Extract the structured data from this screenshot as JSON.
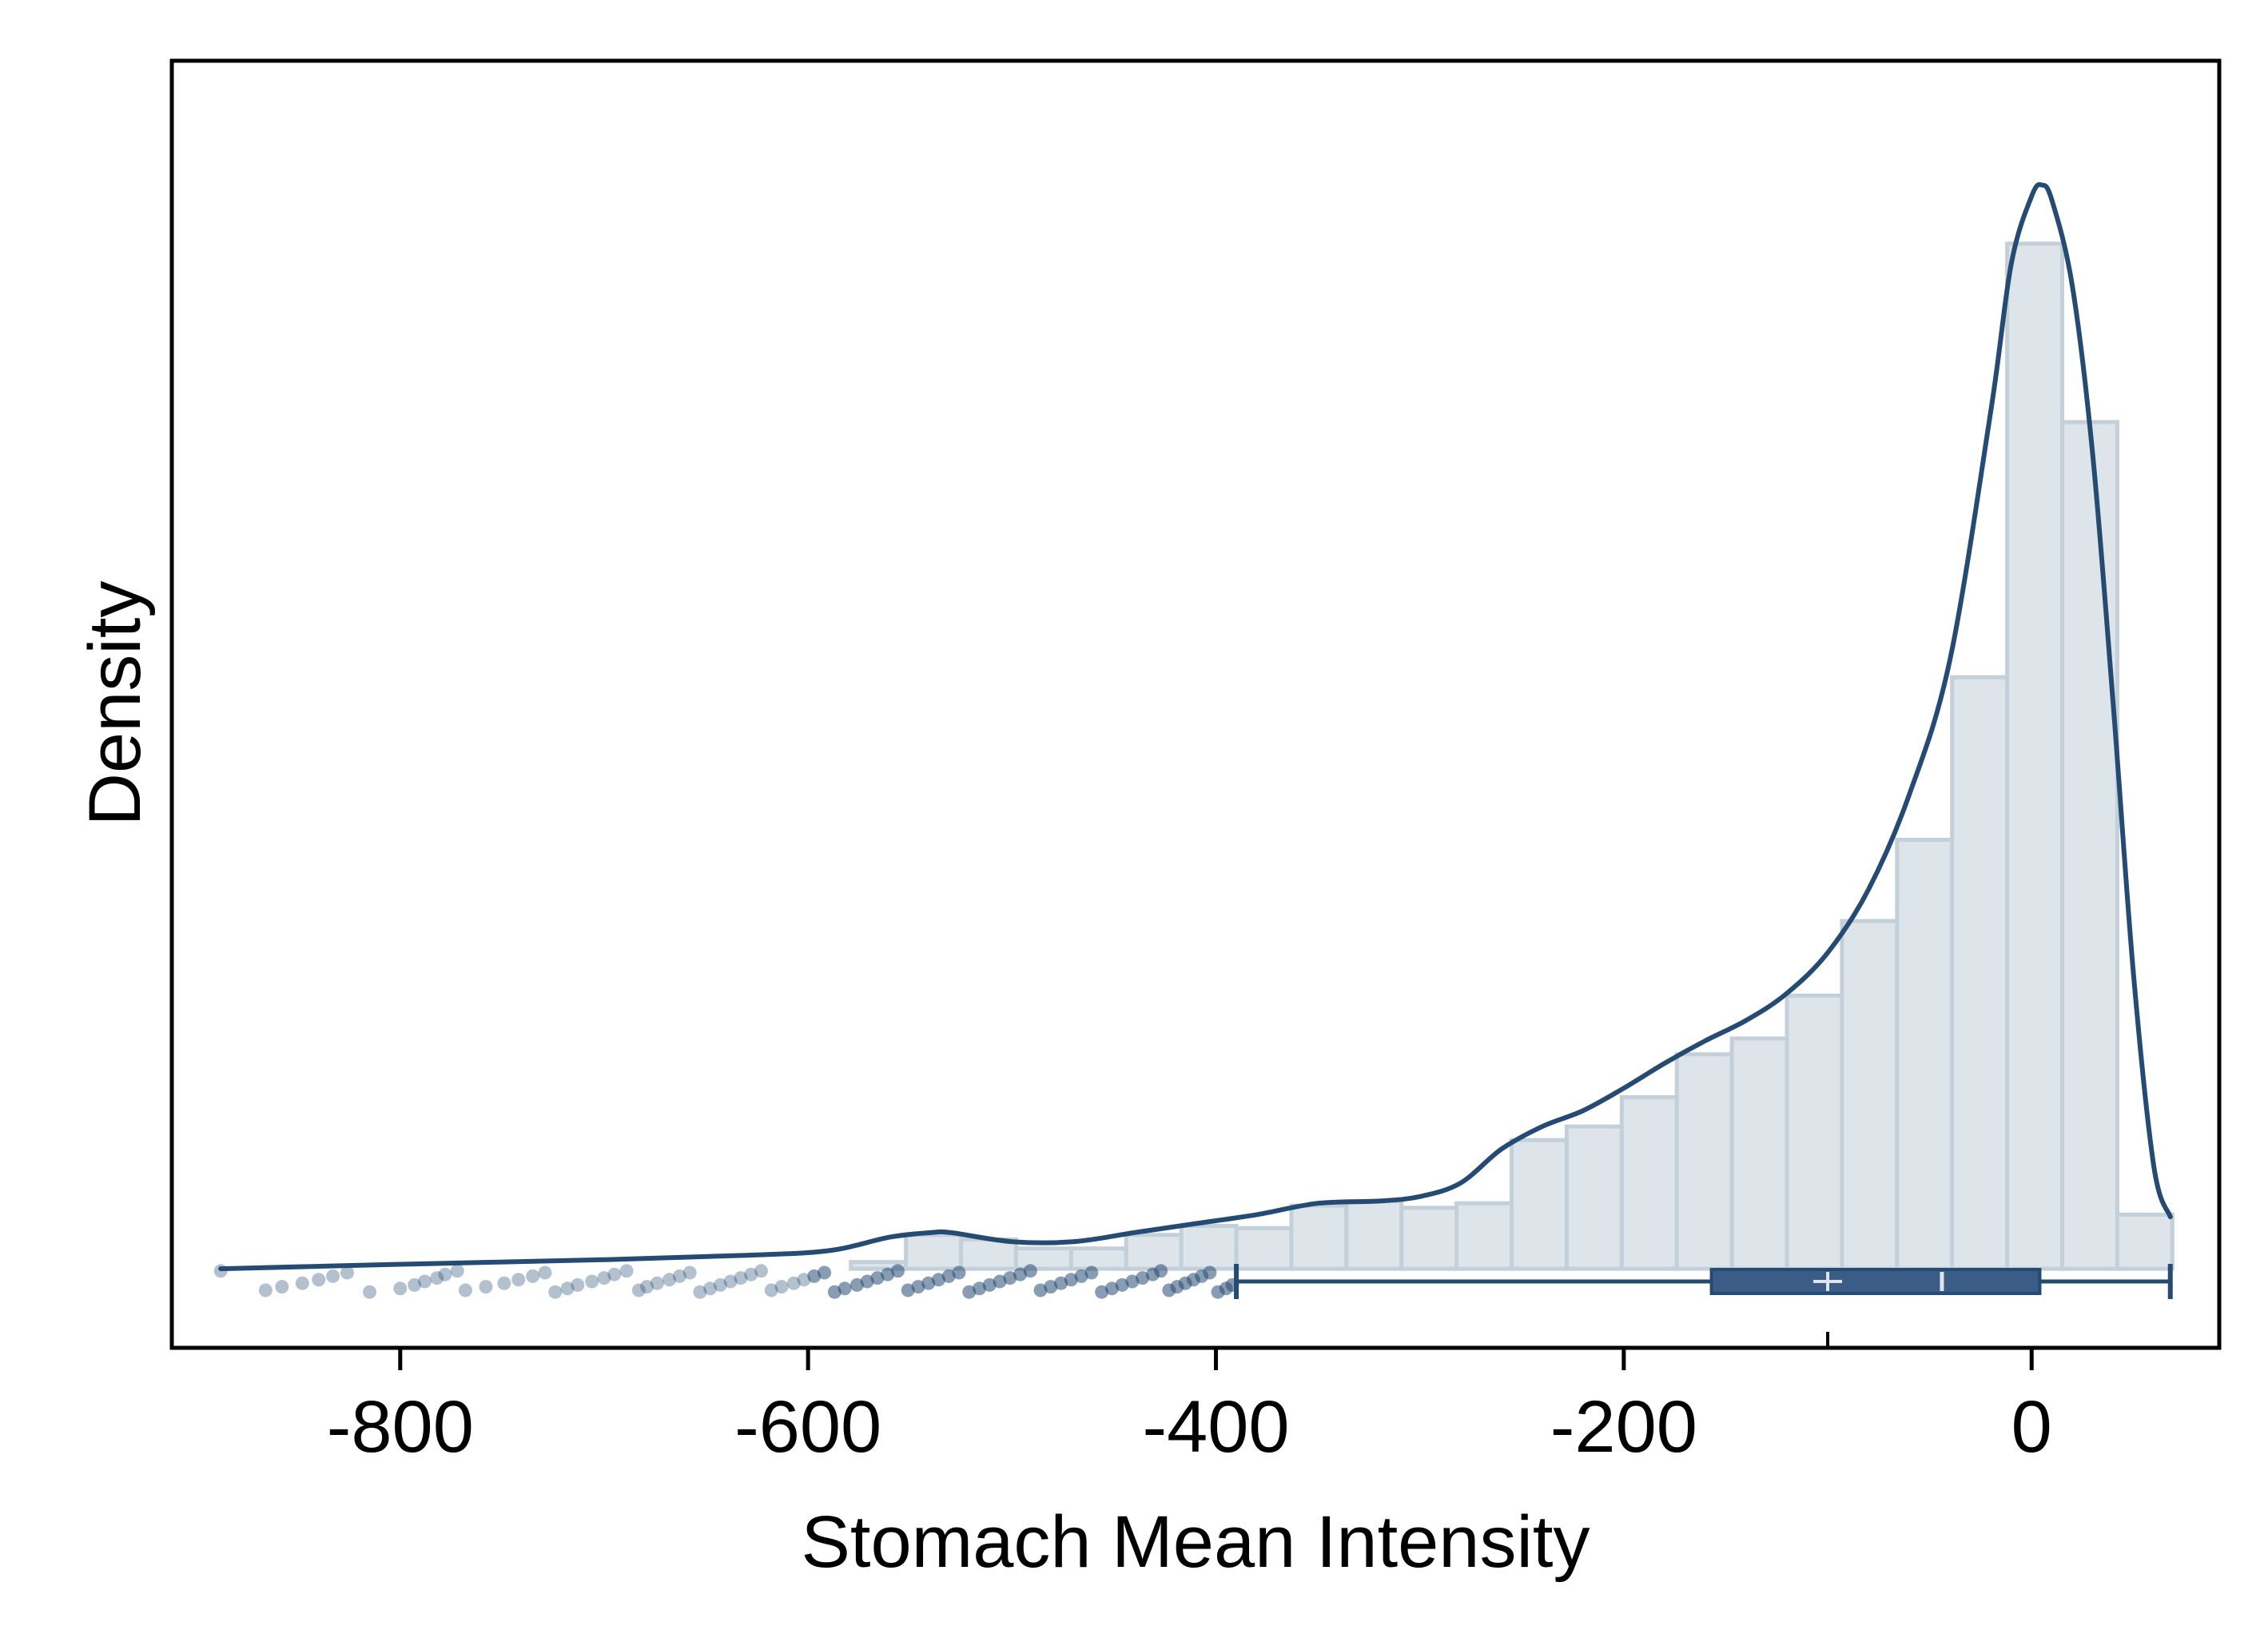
{
  "chart_data": {
    "type": "histogram",
    "title": "",
    "xlabel": "Stomach Mean Intensity",
    "ylabel": "Density",
    "xlim": [
      -912,
      92
    ],
    "ylim": [
      -0.00035,
      0.00535
    ],
    "x_ticks": [
      -800,
      -600,
      -400,
      -200,
      0
    ],
    "x_tick_labels": [
      "-800",
      "-600",
      "-400",
      "-200",
      "0"
    ],
    "y_ticks_shown": false,
    "grid": false,
    "legend": "none",
    "colors": {
      "bar_fill": "#dde4ea",
      "bar_edge": "#c3cfd9",
      "kde_line": "#264b73",
      "box": "#3b5c86",
      "points": "#264b73",
      "median": "#dde4ea",
      "axis": "#000000"
    },
    "histogram": {
      "bin_width": 27,
      "bins": [
        {
          "start": -579,
          "density": 3e-05
        },
        {
          "start": -552,
          "density": 0.00015
        },
        {
          "start": -525,
          "density": 0.00013
        },
        {
          "start": -498,
          "density": 9e-05
        },
        {
          "start": -471,
          "density": 9e-05
        },
        {
          "start": -444,
          "density": 0.00015
        },
        {
          "start": -417,
          "density": 0.00019
        },
        {
          "start": -390,
          "density": 0.00018
        },
        {
          "start": -363,
          "density": 0.00028
        },
        {
          "start": -336,
          "density": 0.0003
        },
        {
          "start": -309,
          "density": 0.00027
        },
        {
          "start": -282,
          "density": 0.00029
        },
        {
          "start": -255,
          "density": 0.00057
        },
        {
          "start": -228,
          "density": 0.00063
        },
        {
          "start": -201,
          "density": 0.00076
        },
        {
          "start": -174,
          "density": 0.00095
        },
        {
          "start": -147,
          "density": 0.00102
        },
        {
          "start": -120,
          "density": 0.00121
        },
        {
          "start": -93,
          "density": 0.00154
        },
        {
          "start": -66,
          "density": 0.0019
        },
        {
          "start": -39,
          "density": 0.00262
        },
        {
          "start": -12,
          "density": 0.00454
        },
        {
          "start": 15,
          "density": 0.00375
        },
        {
          "start": 42,
          "density": 0.00024
        }
      ]
    },
    "kde": {
      "x": [
        -888,
        -800,
        -700,
        -630,
        -590,
        -560,
        -540,
        -530,
        -500,
        -470,
        -440,
        -410,
        -380,
        -350,
        -320,
        -300,
        -280,
        -260,
        -240,
        -220,
        -200,
        -180,
        -160,
        -140,
        -120,
        -100,
        -80,
        -60,
        -40,
        -20,
        -10,
        0,
        5,
        10,
        20,
        30,
        40,
        50,
        60,
        68
      ],
      "y": [
        0.0,
        2e-05,
        4e-05,
        6e-05,
        8e-05,
        0.00014,
        0.00016,
        0.00016,
        0.00012,
        0.00012,
        0.00016,
        0.0002,
        0.00024,
        0.00029,
        0.0003,
        0.00032,
        0.00038,
        0.00053,
        0.00063,
        0.0007,
        0.0008,
        0.00091,
        0.00101,
        0.0011,
        0.00122,
        0.0014,
        0.00168,
        0.0021,
        0.0027,
        0.0038,
        0.00445,
        0.00475,
        0.0048,
        0.00473,
        0.00435,
        0.0036,
        0.0025,
        0.0013,
        0.00045,
        0.00023
      ]
    },
    "boxplot": {
      "whisker_low": -390,
      "q1": -157,
      "median": -44,
      "mean": -100,
      "q3": 4,
      "whisker_high": 68,
      "outliers": [
        -888,
        -866,
        -858,
        -848,
        -840,
        -833,
        -826,
        -815,
        -800,
        -793,
        -788,
        -782,
        -778,
        -772,
        -768,
        -758,
        -749,
        -742,
        -735,
        -729,
        -724,
        -718,
        -713,
        -706,
        -700,
        -695,
        -689,
        -683,
        -679,
        -674,
        -668,
        -663,
        -658,
        -653,
        -648,
        -643,
        -638,
        -633,
        -628,
        -623,
        -618,
        -613,
        -607,
        -602,
        -597,
        -592,
        -587,
        -582,
        -576,
        -571,
        -566,
        -561,
        -556,
        -551,
        -546,
        -541,
        -536,
        -531,
        -526,
        -521,
        -516,
        -511,
        -506,
        -501,
        -496,
        -491,
        -486,
        -481,
        -476,
        -471,
        -466,
        -461,
        -456,
        -451,
        -446,
        -441,
        -436,
        -431,
        -427,
        -423,
        -419,
        -415,
        -411,
        -407,
        -403,
        -399,
        -395,
        -392
      ]
    }
  }
}
